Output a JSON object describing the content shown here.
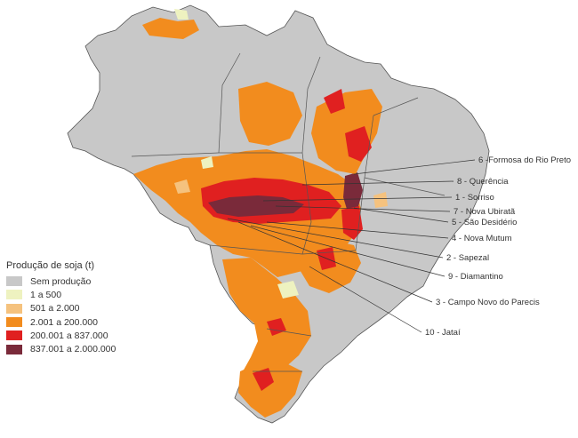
{
  "legend": {
    "title": "Produção de soja (t)",
    "items": [
      {
        "label": "Sem produção",
        "color": "#c8c8c8"
      },
      {
        "label": "1 a 500",
        "color": "#eef2c0"
      },
      {
        "label": "501 a 2.000",
        "color": "#f5c27e"
      },
      {
        "label": "2.001 a 200.000",
        "color": "#f28c1e"
      },
      {
        "label": "200.001 a 837.000",
        "color": "#e02020"
      },
      {
        "label": "837.001 a 2.000.000",
        "color": "#7a2a3a"
      }
    ]
  },
  "callouts": [
    {
      "label": "6 -Formosa do Rio Preto"
    },
    {
      "label": "8 - Querência"
    },
    {
      "label": "1 - Sorriso"
    },
    {
      "label": "7 - Nova Ubiratã"
    },
    {
      "label": "5 - São Desidério"
    },
    {
      "label": "4 - Nova Mutum"
    },
    {
      "label": "2 - Sapezal"
    },
    {
      "label": "9 - Diamantino"
    },
    {
      "label": "3 - Campo Novo do Parecis"
    },
    {
      "label": "10 - Jataí"
    }
  ],
  "colors": {
    "no_production": "#c8c8c8",
    "low": "#eef2c0",
    "low_mid": "#f5c27e",
    "mid": "#f28c1e",
    "high": "#e02020",
    "very_high": "#7a2a3a",
    "boundary": "#555555",
    "leader": "#333333"
  }
}
